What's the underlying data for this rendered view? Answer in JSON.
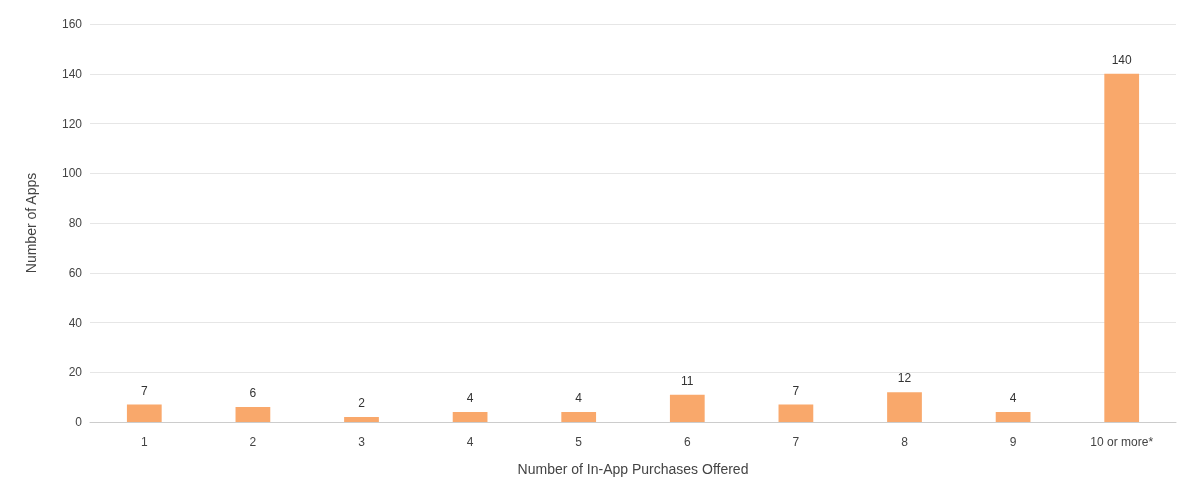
{
  "chart_data": {
    "type": "bar",
    "xlabel": "Number of In-App Purchases Offered",
    "ylabel": "Number of Apps",
    "categories": [
      "1",
      "2",
      "3",
      "4",
      "5",
      "6",
      "7",
      "8",
      "9",
      "10 or more*"
    ],
    "values": [
      7,
      6,
      2,
      4,
      4,
      11,
      7,
      12,
      4,
      140
    ],
    "color": "#f9a86b",
    "ylim": [
      0,
      160
    ],
    "yticks": [
      0,
      20,
      40,
      60,
      80,
      100,
      120,
      140,
      160
    ],
    "grid": "y",
    "data_labels": true
  }
}
